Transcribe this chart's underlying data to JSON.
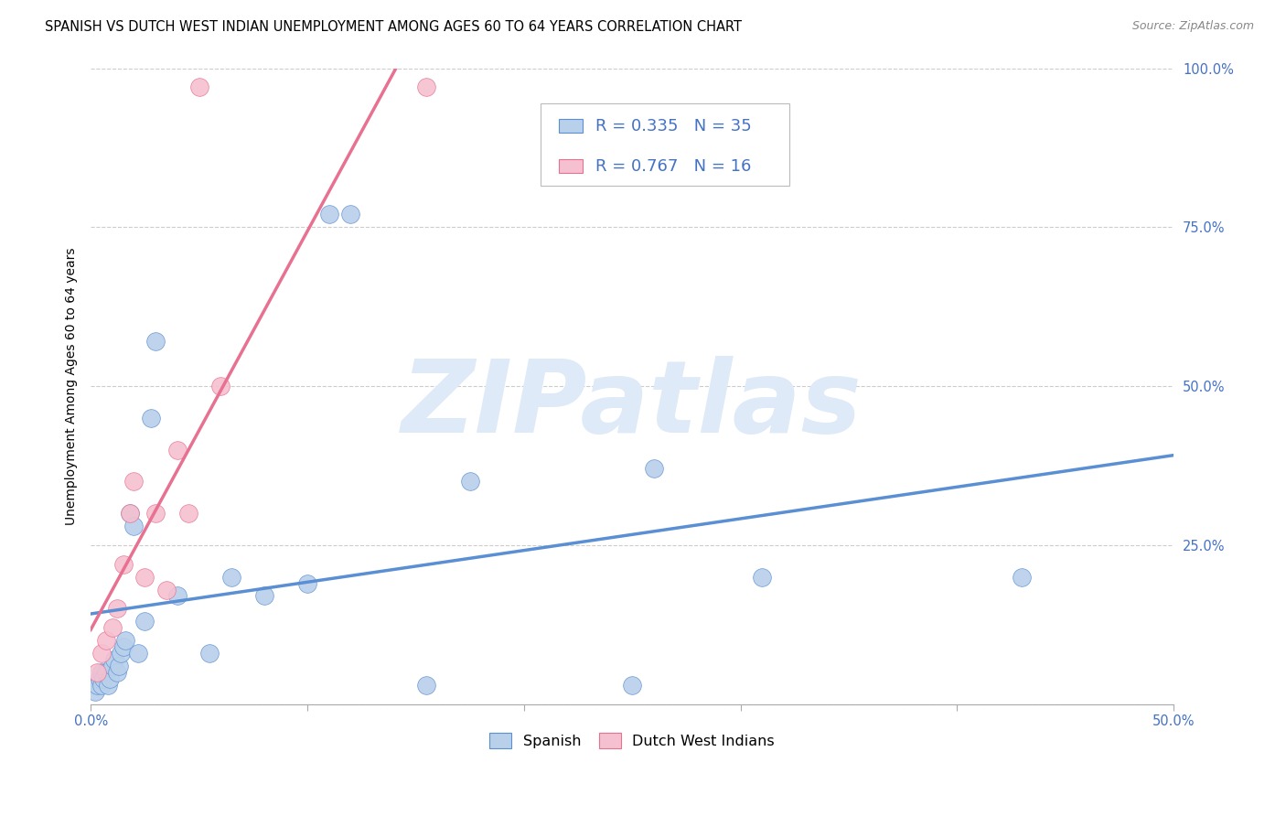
{
  "title": "SPANISH VS DUTCH WEST INDIAN UNEMPLOYMENT AMONG AGES 60 TO 64 YEARS CORRELATION CHART",
  "source": "Source: ZipAtlas.com",
  "ylabel": "Unemployment Among Ages 60 to 64 years",
  "xlim": [
    0.0,
    0.5
  ],
  "ylim": [
    0.0,
    1.0
  ],
  "xticks": [
    0.0,
    0.1,
    0.2,
    0.3,
    0.4,
    0.5
  ],
  "yticks": [
    0.0,
    0.25,
    0.5,
    0.75,
    1.0
  ],
  "spanish_x": [
    0.002,
    0.003,
    0.004,
    0.005,
    0.005,
    0.006,
    0.007,
    0.008,
    0.009,
    0.01,
    0.011,
    0.012,
    0.013,
    0.014,
    0.015,
    0.016,
    0.018,
    0.02,
    0.022,
    0.025,
    0.028,
    0.03,
    0.04,
    0.055,
    0.065,
    0.08,
    0.1,
    0.11,
    0.12,
    0.155,
    0.175,
    0.26,
    0.31,
    0.43,
    0.25
  ],
  "spanish_y": [
    0.02,
    0.03,
    0.04,
    0.03,
    0.05,
    0.04,
    0.05,
    0.03,
    0.04,
    0.06,
    0.07,
    0.05,
    0.06,
    0.08,
    0.09,
    0.1,
    0.3,
    0.28,
    0.08,
    0.13,
    0.45,
    0.57,
    0.17,
    0.08,
    0.2,
    0.17,
    0.19,
    0.77,
    0.77,
    0.03,
    0.35,
    0.37,
    0.2,
    0.2,
    0.03
  ],
  "dutch_x": [
    0.003,
    0.005,
    0.007,
    0.01,
    0.012,
    0.015,
    0.018,
    0.02,
    0.025,
    0.03,
    0.035,
    0.04,
    0.045,
    0.05,
    0.06,
    0.155
  ],
  "dutch_y": [
    0.05,
    0.08,
    0.1,
    0.12,
    0.15,
    0.22,
    0.3,
    0.35,
    0.2,
    0.3,
    0.18,
    0.4,
    0.3,
    0.97,
    0.5,
    0.97
  ],
  "spanish_R": 0.335,
  "spanish_N": 35,
  "dutch_R": 0.767,
  "dutch_N": 16,
  "spanish_color": "#b8d0ea",
  "dutch_color": "#f5c0d0",
  "spanish_line_color": "#5b8fd4",
  "dutch_line_color": "#e87090",
  "watermark": "ZIPatlas",
  "watermark_color": "#deeaf7",
  "legend_color": "#4472c4",
  "title_fontsize": 10.5,
  "axis_label_fontsize": 10,
  "tick_fontsize": 10.5,
  "legend_fontsize": 13
}
